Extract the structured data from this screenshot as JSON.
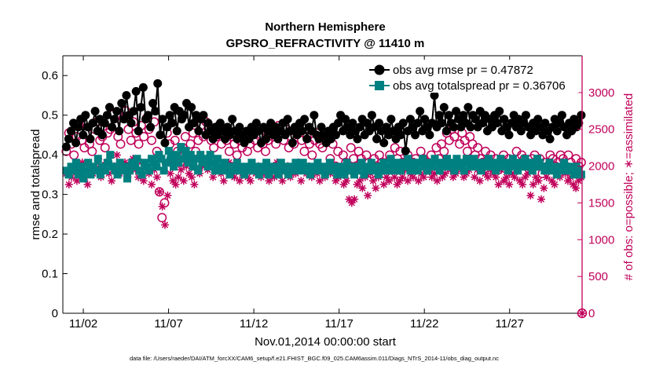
{
  "chart_data": {
    "type": "line",
    "title": "Northern Hemisphere",
    "subtitle": "GPSRO_REFRACTIVITY @ 11410 m",
    "xlabel": "Nov.01,2014 00:00:00 start",
    "ylabel": "rmse and totalspread",
    "ylabel_right": "# of obs: o=possible; ∗=assimilated",
    "footer": "data file: /Users/raeder/DAI/ATM_forcXX/CAM6_setup/f.e21.FHIST_BGC.f09_025.CAM6assim.011/Diags_NTrS_2014-11/obs_diag_output.nc",
    "xlim": [
      0.8,
      31.25
    ],
    "ylim": [
      0,
      0.65
    ],
    "ylim_right": [
      0,
      3500
    ],
    "x_ticks": [
      2,
      7,
      12,
      17,
      22,
      27
    ],
    "x_tick_labels": [
      "11/02",
      "11/07",
      "11/12",
      "11/17",
      "11/22",
      "11/27"
    ],
    "y_ticks": [
      0,
      0.1,
      0.2,
      0.3,
      0.4,
      0.5,
      0.6
    ],
    "y_tick_labels": [
      "0",
      "0.1",
      "0.2",
      "0.3",
      "0.4",
      "0.5",
      "0.6"
    ],
    "y_right_ticks": [
      0,
      500,
      1000,
      1500,
      2000,
      2500,
      3000
    ],
    "y_right_tick_labels": [
      "0",
      "500",
      "1000",
      "1500",
      "2000",
      "2500",
      "3000"
    ],
    "legend_position": "top-right",
    "colors": {
      "rmse": "#000000",
      "spread": "#008080",
      "obs": "#c0005a"
    },
    "series": [
      {
        "name": "obs avg rmse pr = 0.47872",
        "style": "line-circle",
        "values": [
          0.42,
          0.44,
          0.46,
          0.48,
          0.43,
          0.47,
          0.49,
          0.45,
          0.5,
          0.47,
          0.44,
          0.48,
          0.51,
          0.46,
          0.49,
          0.45,
          0.48,
          0.5,
          0.52,
          0.47,
          0.49,
          0.51,
          0.46,
          0.53,
          0.49,
          0.55,
          0.5,
          0.48,
          0.51,
          0.56,
          0.46,
          0.52,
          0.57,
          0.49,
          0.5,
          0.47,
          0.53,
          0.51,
          0.58,
          0.45,
          0.49,
          0.43,
          0.47,
          0.5,
          0.48,
          0.52,
          0.46,
          0.51,
          0.49,
          0.5,
          0.53,
          0.47,
          0.52,
          0.48,
          0.5,
          0.46,
          0.49,
          0.5,
          0.45,
          0.48,
          0.46,
          0.44,
          0.47,
          0.45,
          0.48,
          0.46,
          0.44,
          0.47,
          0.45,
          0.49,
          0.46,
          0.44,
          0.47,
          0.45,
          0.43,
          0.46,
          0.44,
          0.47,
          0.45,
          0.48,
          0.46,
          0.43,
          0.47,
          0.44,
          0.46,
          0.48,
          0.45,
          0.47,
          0.44,
          0.46,
          0.48,
          0.45,
          0.49,
          0.46,
          0.43,
          0.47,
          0.45,
          0.48,
          0.46,
          0.49,
          0.44,
          0.47,
          0.46,
          0.5,
          0.45,
          0.44,
          0.47,
          0.45,
          0.43,
          0.46,
          0.44,
          0.47,
          0.45,
          0.48,
          0.5,
          0.46,
          0.49,
          0.47,
          0.45,
          0.48,
          0.46,
          0.44,
          0.47,
          0.49,
          0.45,
          0.48,
          0.46,
          0.5,
          0.47,
          0.44,
          0.48,
          0.46,
          0.43,
          0.47,
          0.45,
          0.49,
          0.46,
          0.44,
          0.47,
          0.45,
          0.48,
          0.41,
          0.46,
          0.49,
          0.47,
          0.45,
          0.48,
          0.51,
          0.46,
          0.49,
          0.47,
          0.45,
          0.48,
          0.55,
          0.47,
          0.5,
          0.48,
          0.52,
          0.46,
          0.5,
          0.48,
          0.47,
          0.51,
          0.49,
          0.47,
          0.5,
          0.48,
          0.52,
          0.47,
          0.5,
          0.49,
          0.47,
          0.51,
          0.48,
          0.5,
          0.46,
          0.49,
          0.47,
          0.5,
          0.48,
          0.51,
          0.46,
          0.49,
          0.47,
          0.45,
          0.48,
          0.5,
          0.47,
          0.49,
          0.46,
          0.48,
          0.5,
          0.47,
          0.45,
          0.48,
          0.46,
          0.49,
          0.47,
          0.45,
          0.48,
          0.46,
          0.44,
          0.47,
          0.49,
          0.46,
          0.48,
          0.5,
          0.47,
          0.45,
          0.48,
          0.46,
          0.49,
          0.47,
          0.48,
          0.5
        ]
      },
      {
        "name": "obs avg totalspread pr = 0.36706",
        "style": "line-square",
        "values": [
          0.36,
          0.35,
          0.37,
          0.36,
          0.38,
          0.35,
          0.37,
          0.34,
          0.36,
          0.38,
          0.35,
          0.37,
          0.36,
          0.39,
          0.35,
          0.37,
          0.36,
          0.38,
          0.4,
          0.37,
          0.36,
          0.35,
          0.38,
          0.36,
          0.37,
          0.34,
          0.36,
          0.38,
          0.37,
          0.39,
          0.36,
          0.35,
          0.38,
          0.37,
          0.36,
          0.39,
          0.38,
          0.37,
          0.4,
          0.39,
          0.36,
          0.38,
          0.41,
          0.39,
          0.37,
          0.4,
          0.38,
          0.42,
          0.39,
          0.41,
          0.38,
          0.4,
          0.37,
          0.39,
          0.36,
          0.4,
          0.38,
          0.39,
          0.37,
          0.4,
          0.38,
          0.36,
          0.39,
          0.37,
          0.36,
          0.38,
          0.37,
          0.35,
          0.37,
          0.36,
          0.38,
          0.37,
          0.36,
          0.35,
          0.37,
          0.36,
          0.38,
          0.37,
          0.36,
          0.35,
          0.37,
          0.36,
          0.38,
          0.35,
          0.37,
          0.36,
          0.37,
          0.35,
          0.38,
          0.36,
          0.37,
          0.35,
          0.37,
          0.36,
          0.38,
          0.37,
          0.36,
          0.38,
          0.37,
          0.36,
          0.35,
          0.37,
          0.36,
          0.38,
          0.37,
          0.36,
          0.35,
          0.37,
          0.38,
          0.36,
          0.37,
          0.35,
          0.36,
          0.37,
          0.35,
          0.38,
          0.36,
          0.37,
          0.35,
          0.36,
          0.37,
          0.38,
          0.35,
          0.37,
          0.36,
          0.38,
          0.37,
          0.36,
          0.35,
          0.37,
          0.38,
          0.36,
          0.37,
          0.39,
          0.36,
          0.38,
          0.37,
          0.36,
          0.38,
          0.37,
          0.39,
          0.36,
          0.38,
          0.37,
          0.36,
          0.38,
          0.39,
          0.37,
          0.36,
          0.38,
          0.37,
          0.39,
          0.38,
          0.36,
          0.37,
          0.38,
          0.39,
          0.37,
          0.38,
          0.36,
          0.39,
          0.37,
          0.38,
          0.36,
          0.39,
          0.38,
          0.37,
          0.39,
          0.38,
          0.37,
          0.36,
          0.38,
          0.37,
          0.39,
          0.38,
          0.37,
          0.36,
          0.38,
          0.39,
          0.37,
          0.38,
          0.36,
          0.37,
          0.39,
          0.38,
          0.36,
          0.37,
          0.38,
          0.39,
          0.37,
          0.38,
          0.36,
          0.37,
          0.39,
          0.38,
          0.37,
          0.36,
          0.37,
          0.38,
          0.36,
          0.37,
          0.35,
          0.36,
          0.37,
          0.38,
          0.36,
          0.37,
          0.36,
          0.35,
          0.37,
          0.36,
          0.35
        ]
      },
      {
        "name": "# obs possible",
        "axis": "right",
        "style": "open-circle",
        "values": [
          2200,
          2450,
          2300,
          2150,
          2400,
          2550,
          2350,
          2250,
          2450,
          2300,
          2200,
          2500,
          2600,
          2350,
          2400,
          2250,
          2450,
          2500,
          2700,
          2550,
          2400,
          2300,
          2650,
          2750,
          2500,
          2350,
          2600,
          2450,
          2300,
          2550,
          2400,
          2650,
          2500,
          2350,
          2600,
          2200,
          1650,
          1300,
          1500,
          2450,
          2300,
          2100,
          2350,
          2200,
          2050,
          2250,
          2400,
          2150,
          2300,
          2450,
          2200,
          2350,
          2550,
          2400,
          2600,
          2500,
          2350,
          2250,
          2400,
          2550,
          2300,
          2450,
          2350,
          2200,
          2400,
          2300,
          2150,
          2350,
          2250,
          2400,
          2200,
          2300,
          2450,
          2350,
          2250,
          2400,
          2300,
          2200,
          2350,
          2500,
          2400,
          2300,
          2550,
          2450,
          2350,
          2500,
          2250,
          2400,
          2300,
          2450,
          2550,
          2350,
          2200,
          2400,
          2300,
          2150,
          2350,
          2450,
          2300,
          2250,
          2400,
          2350,
          2100,
          2300,
          2000,
          2200,
          1950,
          2150,
          2050,
          1950,
          2250,
          2100,
          2000,
          2200,
          2100,
          1950,
          2150,
          2050,
          1900,
          2100,
          2000,
          2150,
          2050,
          1900,
          2050,
          2150,
          2000,
          2250,
          2100,
          2200,
          2050,
          2000,
          2150,
          1950,
          2050,
          2100,
          2000,
          2200,
          2100,
          2050,
          1950,
          2150,
          2000,
          2250,
          2100,
          2300,
          2200,
          2450,
          2350,
          2500,
          2400,
          2550,
          2300,
          2450,
          2350,
          2200,
          2400,
          2300,
          2150,
          2250,
          2100,
          2050,
          2200,
          2050,
          2150,
          2000,
          2100,
          1950,
          2050,
          2150,
          2000,
          2100,
          1950,
          2050,
          2200,
          2000,
          2150,
          2100,
          2050,
          1950,
          2100,
          2150,
          2000,
          2100,
          1900,
          2050,
          2000,
          2150,
          2100,
          2000,
          2050,
          2150,
          2100,
          2000,
          2150,
          2050,
          1950,
          2100,
          2000,
          2050
        ]
      },
      {
        "name": "# obs assimilated",
        "axis": "right",
        "style": "asterisk",
        "values": [
          1900,
          1750,
          1850,
          2000,
          1800,
          1950,
          2050,
          1850,
          1750,
          1950,
          1900,
          2000,
          2100,
          1850,
          1950,
          2050,
          1900,
          1800,
          2000,
          2150,
          1900,
          1950,
          2050,
          1850,
          2000,
          2100,
          1950,
          1850,
          2050,
          1800,
          2000,
          1900,
          1750,
          1950,
          1850,
          1650,
          1450,
          1200,
          1600,
          1900,
          1800,
          1750,
          1850,
          1950,
          1800,
          2000,
          1900,
          1850,
          1750,
          1950,
          1900,
          2000,
          2050,
          1950,
          2050,
          1850,
          1950,
          2000,
          1900,
          1800,
          1950,
          2050,
          1900,
          1850,
          1950,
          1800,
          1900,
          1950,
          1850,
          1800,
          1950,
          1900,
          2000,
          1850,
          1950,
          1900,
          1800,
          1950,
          1850,
          2050,
          1900,
          1800,
          1950,
          2000,
          1850,
          1950,
          1900,
          2050,
          1800,
          1950,
          1900,
          2000,
          1850,
          1950,
          1900,
          1800,
          1950,
          1850,
          2000,
          1900,
          1950,
          1800,
          1850,
          1900,
          1750,
          1800,
          1550,
          1500,
          1550,
          1750,
          1800,
          1700,
          1850,
          1600,
          1900,
          1800,
          1700,
          1850,
          1950,
          1750,
          1850,
          1800,
          1950,
          1850,
          1750,
          1800,
          1850,
          1950,
          1800,
          1900,
          1850,
          1950,
          1800,
          1900,
          1850,
          2000,
          1950,
          1850,
          1900,
          1800,
          1950,
          1850,
          1900,
          2000,
          1950,
          1850,
          1900,
          2050,
          1950,
          1850,
          1900,
          1950,
          2050,
          1850,
          1950,
          1800,
          2000,
          1900,
          1850,
          1950,
          1900,
          1850,
          1750,
          1950,
          1800,
          1850,
          1750,
          1900,
          1850,
          1950,
          1800,
          1750,
          1850,
          1900,
          1600,
          1750,
          1850,
          1800,
          1550,
          1700,
          1850,
          1950,
          1800,
          1750,
          1900,
          1850,
          1950,
          1900,
          1800,
          1850,
          1750,
          1700,
          1800,
          1850
        ]
      }
    ]
  }
}
